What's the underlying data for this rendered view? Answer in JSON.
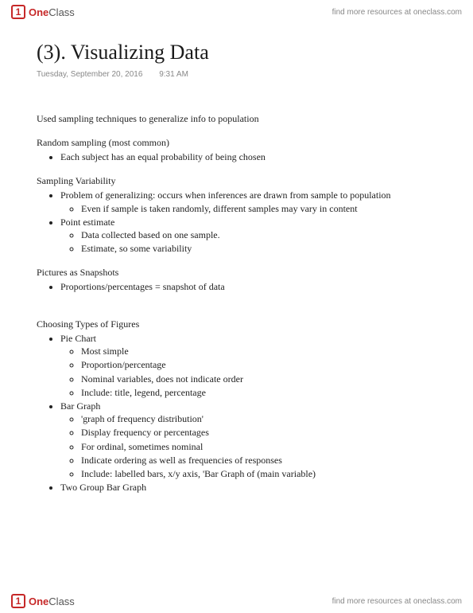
{
  "brand": {
    "iconGlyph": "1",
    "textOne": "One",
    "textClass": "Class"
  },
  "resourcesText": "find more resources at oneclass.com",
  "title": "(3). Visualizing Data",
  "date": "Tuesday, September 20, 2016",
  "time": "9:31 AM",
  "intro": "Used sampling techniques to generalize info to population",
  "sections": {
    "randomSampling": {
      "head": "Random sampling (most common)",
      "items": [
        "Each subject has an equal probability of being chosen"
      ]
    },
    "samplingVariability": {
      "head": "Sampling Variability",
      "item1": "Problem of generalizing: occurs when inferences are drawn from sample to population",
      "item1a": "Even if sample is taken randomly, different samples may vary in content",
      "item2": "Point estimate",
      "item2a": "Data collected based on one sample.",
      "item2b": "Estimate, so some variability"
    },
    "snapshots": {
      "head": "Pictures as Snapshots",
      "items": [
        "Proportions/percentages = snapshot of data"
      ]
    },
    "figures": {
      "head": "Choosing Types of Figures",
      "pie": {
        "label": "Pie Chart",
        "sub": [
          "Most simple",
          "Proportion/percentage",
          "Nominal variables, does not indicate order",
          "Include: title, legend, percentage"
        ]
      },
      "bar": {
        "label": "Bar Graph",
        "sub": [
          "'graph of frequency distribution'",
          "Display frequency or percentages",
          "For ordinal, sometimes nominal",
          "Indicate ordering as well as frequencies of responses",
          "Include: labelled bars, x/y axis, 'Bar Graph of (main variable)"
        ]
      },
      "twoGroup": {
        "label": "Two Group Bar Graph"
      }
    }
  }
}
